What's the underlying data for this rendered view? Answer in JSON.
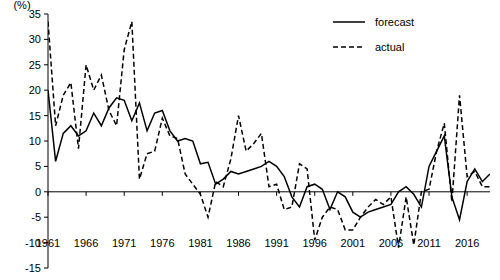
{
  "chart_data": {
    "type": "line",
    "ylabel": "(%)",
    "x": [
      1961,
      1962,
      1963,
      1964,
      1965,
      1966,
      1967,
      1968,
      1969,
      1970,
      1971,
      1972,
      1973,
      1974,
      1975,
      1976,
      1977,
      1978,
      1979,
      1980,
      1981,
      1982,
      1983,
      1984,
      1985,
      1986,
      1987,
      1988,
      1989,
      1990,
      1991,
      1992,
      1993,
      1994,
      1995,
      1996,
      1997,
      1998,
      1999,
      2000,
      2001,
      2002,
      2003,
      2004,
      2005,
      2006,
      2007,
      2008,
      2009,
      2010,
      2011,
      2012,
      2013,
      2014,
      2015,
      2016,
      2017,
      2018,
      2019
    ],
    "series": [
      {
        "name": "forecast",
        "color": "#000000",
        "line_style": "solid",
        "values": [
          20,
          6,
          11.5,
          13,
          11,
          12,
          15.5,
          13,
          16.5,
          18.5,
          18,
          14,
          17.5,
          12,
          15.5,
          16,
          12,
          10,
          10.5,
          10,
          5.5,
          5.8,
          1.5,
          2.5,
          4,
          3.5,
          4,
          4.5,
          5,
          6,
          5,
          3,
          -1,
          -3,
          1,
          1.5,
          0.5,
          -3.5,
          0,
          -1,
          -4,
          -5,
          -4,
          -3.5,
          -3,
          -2.5,
          0,
          1,
          -0.5,
          -3,
          5,
          8,
          11,
          -1,
          -5.5,
          2,
          4.5,
          2,
          3.5
        ]
      },
      {
        "name": "actual",
        "color": "#000000",
        "line_style": "dashed",
        "values": [
          33.5,
          13,
          19,
          21.5,
          8.5,
          25,
          20,
          23,
          16,
          13,
          28,
          33.5,
          2.5,
          7.5,
          8,
          14.5,
          11,
          10.5,
          3.5,
          1.5,
          -0.5,
          -5,
          2,
          1,
          6.5,
          15,
          8,
          9.5,
          11.5,
          1,
          1.5,
          -3.5,
          -3,
          5.5,
          4.5,
          -9.5,
          -5,
          -3,
          -3.5,
          -7.5,
          -7.5,
          -5,
          -3,
          -1.5,
          -2.5,
          -1,
          -11,
          -1,
          -10.5,
          0,
          0.5,
          8,
          13.5,
          -2,
          19,
          3,
          4,
          1,
          1
        ]
      }
    ],
    "xlim": [
      1961,
      2019
    ],
    "xticks": [
      1961,
      1966,
      1971,
      1976,
      1981,
      1986,
      1991,
      1996,
      2001,
      2006,
      2011,
      2016
    ],
    "ylim": [
      -15,
      35
    ],
    "yticks": [
      -15,
      -10,
      -5,
      0,
      5,
      10,
      15,
      20,
      25,
      30,
      35
    ],
    "grid": false,
    "legend": "upper right"
  }
}
